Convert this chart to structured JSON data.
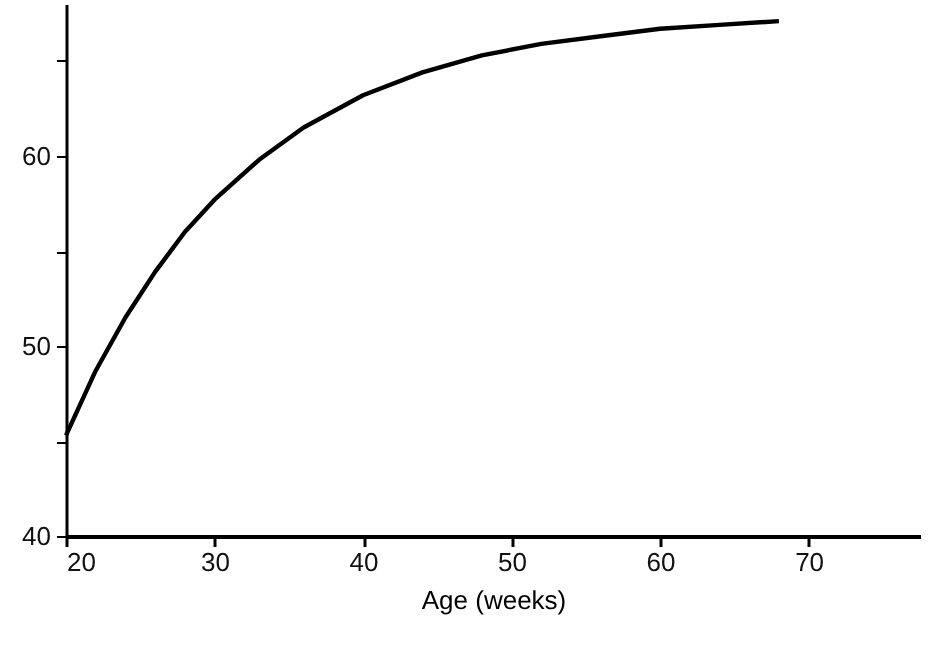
{
  "chart_data": {
    "type": "line",
    "xlabel": "Age (weeks)",
    "x": [
      20,
      22,
      24,
      26,
      28,
      30,
      33,
      36,
      40,
      44,
      48,
      52,
      56,
      60,
      64,
      68
    ],
    "series": [
      {
        "color": "#000000",
        "values": [
          45.3,
          48.7,
          51.5,
          53.9,
          56.0,
          57.7,
          59.8,
          61.5,
          63.2,
          64.4,
          65.3,
          65.9,
          66.3,
          66.7,
          66.9,
          67.1
        ]
      }
    ],
    "xlim": [
      20,
      77.5
    ],
    "xticks": [
      20,
      30,
      40,
      50,
      60,
      70
    ],
    "ylim": [
      40,
      68
    ],
    "yticks": [
      40,
      {
        "value": 45,
        "label": null
      },
      50,
      {
        "value": 55,
        "label": null
      },
      60,
      {
        "value": 65,
        "label": null
      }
    ],
    "grid": false,
    "marker": "none",
    "line_style": "solid"
  }
}
